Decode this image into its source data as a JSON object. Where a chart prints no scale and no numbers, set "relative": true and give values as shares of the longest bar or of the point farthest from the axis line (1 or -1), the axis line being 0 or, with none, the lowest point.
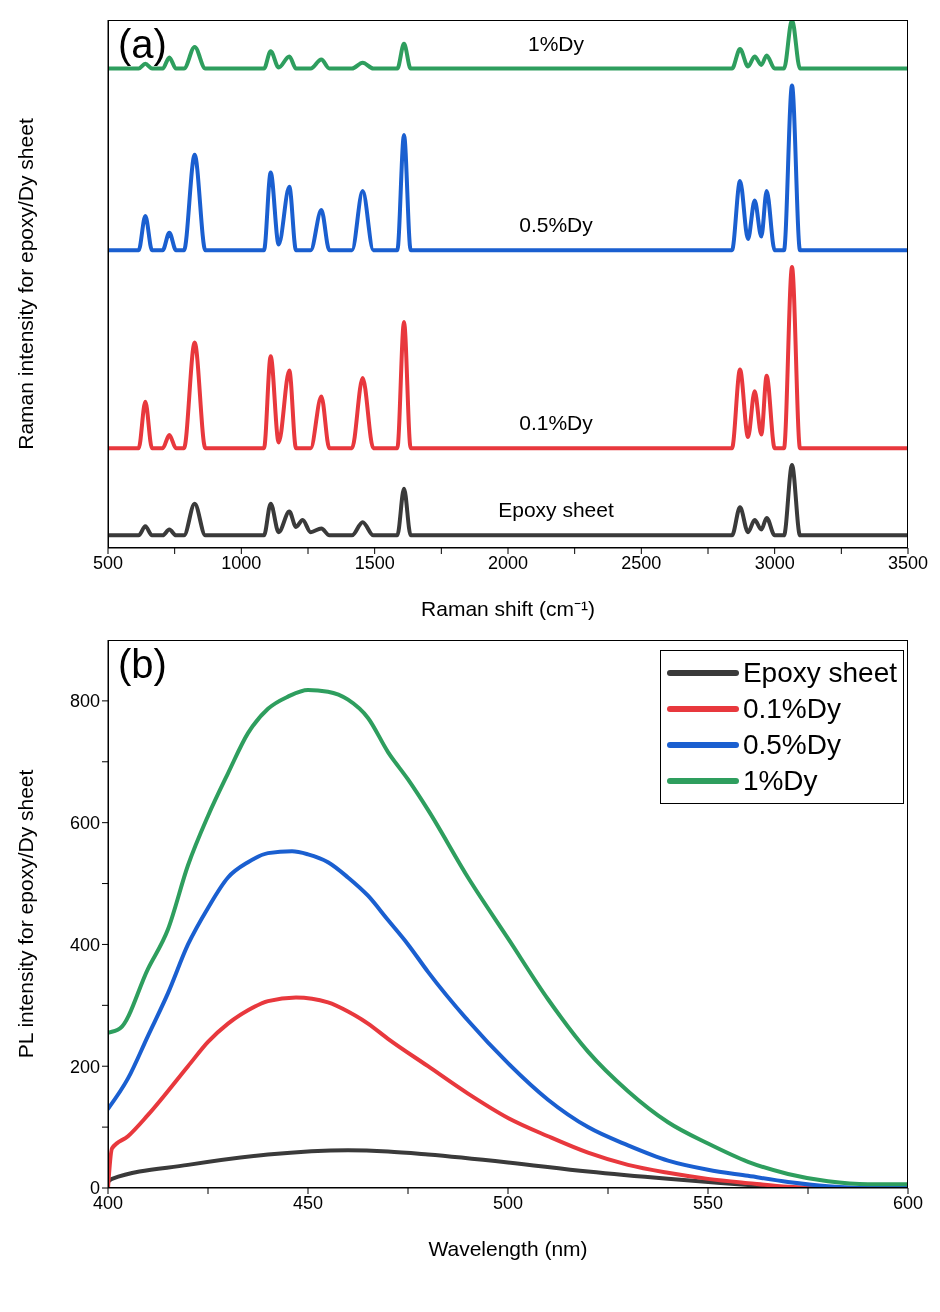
{
  "chart_data": [
    {
      "type": "line",
      "relative": true,
      "xlabel": "Raman shift (cm⁻¹)",
      "ylabel": "Raman intensity for epoxy/Dy sheet",
      "annotations": [
        "(a)"
      ],
      "xlim": [
        500,
        3500
      ],
      "xticks": [
        500,
        {
          "value": 750,
          "label": null
        },
        1000,
        {
          "value": 1250,
          "label": null
        },
        1500,
        {
          "value": 1750,
          "label": null
        },
        2000,
        {
          "value": 2250,
          "label": null
        },
        2500,
        {
          "value": 2750,
          "label": null
        },
        3000,
        {
          "value": 3250,
          "label": null
        },
        3500
      ],
      "tick_labels": "x",
      "legend": false,
      "marker": "none",
      "line_style": "solid",
      "x": [
        500,
        615,
        640,
        665,
        705,
        730,
        755,
        785,
        825,
        865,
        1085,
        1110,
        1140,
        1180,
        1205,
        1230,
        1260,
        1300,
        1330,
        1415,
        1455,
        1495,
        1585,
        1610,
        1635,
        2840,
        2870,
        2900,
        2925,
        2950,
        2970,
        3000,
        3035,
        3065,
        3095,
        3500
      ],
      "series": [
        {
          "name": "Epoxy sheet",
          "color": "#3a3a3a",
          "values": [
            0.024,
            0.024,
            0.041,
            0.024,
            0.024,
            0.035,
            0.024,
            0.024,
            0.084,
            0.024,
            0.024,
            0.084,
            0.03,
            0.069,
            0.04,
            0.053,
            0.03,
            0.037,
            0.024,
            0.024,
            0.049,
            0.024,
            0.024,
            0.112,
            0.024,
            0.024,
            0.077,
            0.03,
            0.053,
            0.035,
            0.057,
            0.024,
            0.024,
            0.157,
            0.024,
            0.024
          ]
        },
        {
          "name": "0.1%Dy",
          "color": "#e8383d",
          "values": [
            0.189,
            0.189,
            0.277,
            0.189,
            0.189,
            0.214,
            0.189,
            0.189,
            0.389,
            0.189,
            0.189,
            0.363,
            0.2,
            0.336,
            0.189,
            0.189,
            0.189,
            0.287,
            0.189,
            0.189,
            0.322,
            0.189,
            0.189,
            0.428,
            0.189,
            0.189,
            0.338,
            0.21,
            0.297,
            0.215,
            0.326,
            0.189,
            0.189,
            0.532,
            0.189,
            0.189
          ]
        },
        {
          "name": "0.5%Dy",
          "color": "#1a5fd0",
          "values": [
            0.564,
            0.564,
            0.629,
            0.564,
            0.564,
            0.597,
            0.564,
            0.564,
            0.745,
            0.564,
            0.564,
            0.711,
            0.575,
            0.684,
            0.564,
            0.564,
            0.564,
            0.64,
            0.564,
            0.564,
            0.676,
            0.564,
            0.564,
            0.782,
            0.564,
            0.564,
            0.695,
            0.585,
            0.658,
            0.59,
            0.676,
            0.564,
            0.564,
            0.876,
            0.564,
            0.564
          ]
        },
        {
          "name": "1%Dy",
          "color": "#2e9e5e",
          "values": [
            0.908,
            0.908,
            0.917,
            0.908,
            0.908,
            0.929,
            0.908,
            0.908,
            0.949,
            0.908,
            0.908,
            0.941,
            0.91,
            0.931,
            0.908,
            0.908,
            0.908,
            0.925,
            0.908,
            0.908,
            0.919,
            0.908,
            0.908,
            0.955,
            0.908,
            0.908,
            0.945,
            0.912,
            0.931,
            0.915,
            0.933,
            0.908,
            0.908,
            1,
            0.908,
            0.908
          ]
        }
      ]
    },
    {
      "type": "line",
      "xlabel": "Wavelength (nm)",
      "ylabel": "PL intensity for epoxy/Dy sheet",
      "annotations": [
        "(b)"
      ],
      "xlim": [
        400,
        600
      ],
      "xticks": [
        400,
        {
          "value": 425,
          "label": null
        },
        450,
        {
          "value": 475,
          "label": null
        },
        500,
        {
          "value": 525,
          "label": null
        },
        550,
        {
          "value": 575,
          "label": null
        },
        600
      ],
      "ylim": [
        0,
        900
      ],
      "yticks": [
        0,
        {
          "value": 100,
          "label": null
        },
        200,
        {
          "value": 300,
          "label": null
        },
        400,
        {
          "value": 500,
          "label": null
        },
        600,
        {
          "value": 700,
          "label": null
        },
        800
      ],
      "legend": "top right",
      "marker": "none",
      "line_style": "solid",
      "series": [
        {
          "name": "Epoxy sheet",
          "color": "#3a3a3a",
          "x": [
            400,
            401,
            420,
            440,
            460,
            470,
            480,
            500,
            520,
            540,
            560,
            570,
            600
          ],
          "values": [
            10,
            15,
            38,
            55,
            62,
            60,
            55,
            42,
            27,
            15,
            5,
            0,
            0
          ]
        },
        {
          "name": "0.1%Dy",
          "color": "#e8383d",
          "x": [
            400,
            401,
            405,
            410,
            420,
            425,
            430,
            435,
            440,
            447,
            455,
            460,
            465,
            470,
            480,
            490,
            500,
            510,
            520,
            530,
            540,
            550,
            560,
            570,
            580,
            600
          ],
          "values": [
            0,
            65,
            85,
            120,
            200,
            240,
            270,
            292,
            307,
            313,
            305,
            290,
            270,
            245,
            200,
            155,
            115,
            85,
            58,
            38,
            25,
            15,
            8,
            2,
            0,
            0
          ]
        },
        {
          "name": "0.5%Dy",
          "color": "#1a5fd0",
          "x": [
            400,
            405,
            410,
            415,
            420,
            425,
            430,
            435,
            440,
            446,
            450,
            455,
            460,
            465,
            470,
            475,
            480,
            490,
            500,
            510,
            520,
            530,
            540,
            550,
            560,
            570,
            580,
            590,
            600
          ],
          "values": [
            130,
            180,
            250,
            320,
            400,
            460,
            510,
            535,
            550,
            553,
            548,
            535,
            510,
            480,
            440,
            400,
            355,
            275,
            205,
            145,
            100,
            70,
            45,
            30,
            20,
            10,
            3,
            0,
            0
          ]
        },
        {
          "name": "1%Dy",
          "color": "#2e9e5e",
          "x": [
            400,
            403,
            410,
            415,
            420,
            425,
            430,
            435,
            440,
            445,
            450,
            455,
            460,
            465,
            470,
            475,
            480,
            490,
            500,
            510,
            520,
            530,
            540,
            550,
            560,
            570,
            580,
            590,
            600
          ],
          "values": [
            255,
            262,
            360,
            425,
            530,
            611,
            681,
            747,
            787,
            807,
            818,
            815,
            802,
            772,
            716,
            671,
            621,
            510,
            410,
            310,
            224,
            159,
            108,
            73,
            43,
            23,
            11,
            6,
            6
          ]
        }
      ]
    }
  ]
}
